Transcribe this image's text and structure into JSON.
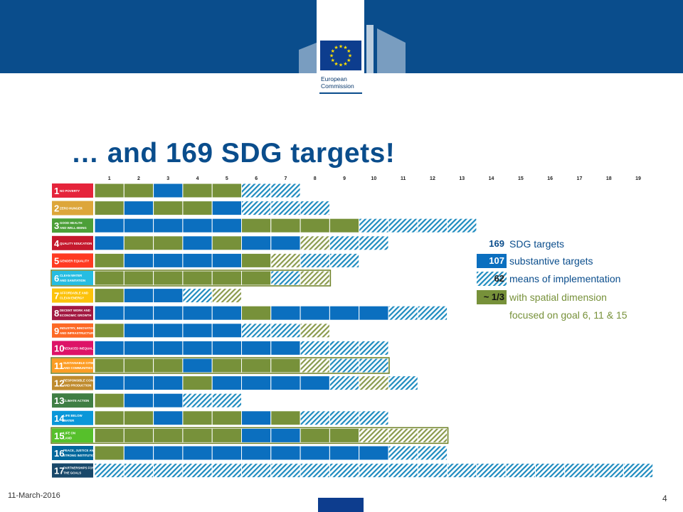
{
  "header": {
    "logo_line1": "European",
    "logo_line2": "Commission",
    "colors": {
      "banner": "#0a4d8c",
      "flag": "#0d3d8e",
      "stars": "#ffe000"
    }
  },
  "title": "… and 169 SDG targets!",
  "columns": [
    "1",
    "2",
    "3",
    "4",
    "5",
    "6",
    "7",
    "8",
    "9",
    "10",
    "11",
    "12",
    "13",
    "14",
    "15",
    "16",
    "17",
    "18",
    "19"
  ],
  "colors": {
    "substantive": "#0b6fbf",
    "spatial": "#77913a",
    "means": "#1e8bbf",
    "means_spatial": "#8a9a4c"
  },
  "goals": [
    {
      "number": "1",
      "label": "NO POVERTY",
      "color": "#e5243b",
      "highlight": false,
      "targets": "GGBGGHH"
    },
    {
      "number": "2",
      "label": "ZERO HUNGER",
      "color": "#dda63a",
      "highlight": false,
      "targets": "GBGGBHHH"
    },
    {
      "number": "3",
      "label": "GOOD HEALTH AND WELL-BEING",
      "color": "#4c9f38",
      "highlight": false,
      "targets": "BBBBBGGGGHHHH"
    },
    {
      "number": "4",
      "label": "QUALITY EDUCATION",
      "color": "#c5192d",
      "highlight": false,
      "targets": "BGGBGBBEHH"
    },
    {
      "number": "5",
      "label": "GENDER EQUALITY",
      "color": "#ff3a21",
      "highlight": false,
      "targets": "GBBBBGEHH"
    },
    {
      "number": "6",
      "label": "CLEAN WATER AND SANITATION",
      "color": "#26bde2",
      "highlight": true,
      "targets": "GGGGGGHE"
    },
    {
      "number": "7",
      "label": "AFFORDABLE AND CLEAN ENERGY",
      "color": "#fcc30b",
      "highlight": false,
      "targets": "GBBHE"
    },
    {
      "number": "8",
      "label": "DECENT WORK AND ECONOMIC GROWTH",
      "color": "#a21942",
      "highlight": false,
      "targets": "BBBBBGBBBBHH"
    },
    {
      "number": "9",
      "label": "INDUSTRY, INNOVATION AND INFRASTRUCTURE",
      "color": "#fd6925",
      "highlight": false,
      "targets": "GBBBBHHE"
    },
    {
      "number": "10",
      "label": "REDUCED INEQUALITIES",
      "color": "#dd1367",
      "highlight": false,
      "targets": "BBBBBBBHHH"
    },
    {
      "number": "11",
      "label": "SUSTAINABLE CITIES AND COMMUNITIES",
      "color": "#fd9d24",
      "highlight": true,
      "targets": "GGGBGGGEHH"
    },
    {
      "number": "12",
      "label": "RESPONSIBLE CONSUMPTION AND PRODUCTION",
      "color": "#bf8b2e",
      "highlight": false,
      "targets": "BBBGBBBBHEH"
    },
    {
      "number": "13",
      "label": "CLIMATE ACTION",
      "color": "#3f7e44",
      "highlight": false,
      "targets": "GBBHH"
    },
    {
      "number": "14",
      "label": "LIFE BELOW WATER",
      "color": "#0a97d9",
      "highlight": false,
      "targets": "GGBGGBGHHH"
    },
    {
      "number": "15",
      "label": "LIFE ON LAND",
      "color": "#56c02b",
      "highlight": true,
      "targets": "GGGGGBBGGEEE"
    },
    {
      "number": "16",
      "label": "PEACE, JUSTICE AND STRONG INSTITUTIONS",
      "color": "#00689d",
      "highlight": false,
      "targets": "GBBBBBBBBBHH"
    },
    {
      "number": "17",
      "label": "PARTNERSHIPS FOR THE GOALS",
      "color": "#19486a",
      "highlight": false,
      "targets": "HHHHHHHHHHHHHHHHHHH"
    }
  ],
  "legend": {
    "total_num": "169",
    "total_text": "SDG targets",
    "substantive_num": "107",
    "substantive_text": "substantive targets",
    "means_num": "62",
    "means_text": "means of implementation",
    "spatial_num": "~ 1/3",
    "spatial_text": "with spatial dimension",
    "focus_text": "focused on goal 6, 11 & 15"
  },
  "footer": {
    "date": "11-March-2016",
    "page": "4"
  }
}
